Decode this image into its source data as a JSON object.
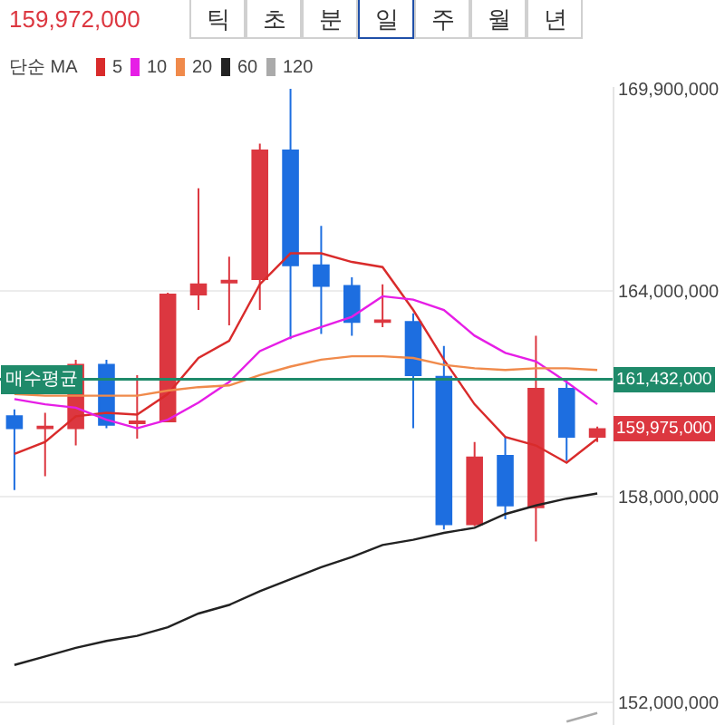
{
  "chart_data": {
    "type": "candlestick",
    "legend_title": "단순 MA",
    "legend": "top left",
    "grid": "y",
    "tick_labels": "y",
    "marker": "none",
    "line_style": "solid",
    "categories": [
      null,
      null,
      null,
      null,
      null,
      null,
      null,
      null,
      null,
      null,
      null,
      null,
      null,
      null,
      null,
      null,
      null,
      null,
      null,
      null
    ],
    "ohlc": [
      [
        160350000,
        160550000,
        158200000,
        160000000
      ],
      [
        160000000,
        160450000,
        158600000,
        160050000
      ],
      [
        160000000,
        162000000,
        159500000,
        161850000
      ],
      [
        161850000,
        162000000,
        160000000,
        160100000
      ],
      [
        160150000,
        161550000,
        159700000,
        160200000
      ],
      [
        160200000,
        163950000,
        160200000,
        163900000
      ],
      [
        163900000,
        167000000,
        163450000,
        164200000
      ],
      [
        164250000,
        165000000,
        163000000,
        164300000
      ],
      [
        164350000,
        168300000,
        163450000,
        168100000
      ],
      [
        168100000,
        169900000,
        162600000,
        164750000
      ],
      [
        164750000,
        165900000,
        162750000,
        164150000
      ],
      [
        164150000,
        164400000,
        162700000,
        163100000
      ],
      [
        163100000,
        164200000,
        162950000,
        163150000
      ],
      [
        163100000,
        163350000,
        160000000,
        161550000
      ],
      [
        161500000,
        162400000,
        157050000,
        157200000
      ],
      [
        157200000,
        159600000,
        157150000,
        159150000
      ],
      [
        159200000,
        159750000,
        157350000,
        157750000
      ],
      [
        157700000,
        162700000,
        156700000,
        161150000
      ],
      [
        161150000,
        161450000,
        159050000,
        159750000
      ],
      [
        159750000,
        160050000,
        159600000,
        159975000
      ]
    ],
    "colors": [
      "#1d6ee0",
      "#dc3740",
      "#dc3740",
      "#1d6ee0",
      "#dc3740",
      "#dc3740",
      "#dc3740",
      "#dc3740",
      "#dc3740",
      "#1d6ee0",
      "#1d6ee0",
      "#1d6ee0",
      "#dc3740",
      "#1d6ee0",
      "#1d6ee0",
      "#dc3740",
      "#1d6ee0",
      "#dc3740",
      "#1d6ee0",
      "#dc3740"
    ],
    "series": [
      {
        "name": "5",
        "type": "line",
        "color": "#d92b2b",
        "values": [
          159250000,
          159600000,
          160350000,
          160450000,
          160400000,
          161000000,
          162050000,
          162550000,
          164200000,
          165100000,
          165100000,
          164850000,
          164700000,
          163450000,
          162000000,
          160700000,
          159750000,
          159500000,
          159000000,
          159700000
        ]
      },
      {
        "name": "10",
        "type": "line",
        "color": "#e61ee6",
        "values": [
          160850000,
          160700000,
          160600000,
          160250000,
          160000000,
          160250000,
          160750000,
          161350000,
          162250000,
          162650000,
          162950000,
          163250000,
          163850000,
          163750000,
          163450000,
          162700000,
          162200000,
          161950000,
          161350000,
          160700000
        ]
      },
      {
        "name": "20",
        "type": "line",
        "color": "#f08a4b",
        "values": [
          161000000,
          160950000,
          160950000,
          160950000,
          160950000,
          161100000,
          161200000,
          161250000,
          161550000,
          161800000,
          162000000,
          162100000,
          162100000,
          162050000,
          161850000,
          161750000,
          161700000,
          161750000,
          161750000,
          161700000
        ]
      },
      {
        "name": "60",
        "type": "line",
        "color": "#222222",
        "values": [
          153100000,
          153350000,
          153600000,
          153800000,
          153950000,
          154200000,
          154600000,
          154850000,
          155250000,
          155600000,
          155950000,
          156250000,
          156600000,
          156750000,
          156950000,
          157100000,
          157500000,
          157750000,
          157950000,
          158100000
        ]
      },
      {
        "name": "120",
        "type": "line",
        "color": "#aaaaaa",
        "values": [
          null,
          null,
          null,
          null,
          null,
          null,
          null,
          null,
          null,
          null,
          null,
          null,
          null,
          null,
          null,
          null,
          null,
          null,
          151450000,
          151700000
        ]
      }
    ],
    "ylim": [
      151350000,
      169950000
    ],
    "yticks": [
      {
        "value": 169900000,
        "label": "169,900,000"
      },
      {
        "value": 164000000,
        "label": "164,000,000"
      },
      {
        "value": 158000000,
        "label": "158,000,000"
      },
      {
        "value": 152000000,
        "label": "152,000,000"
      }
    ],
    "ref_lines": [
      {
        "axis": "y",
        "value": 161432000,
        "label": "매수평균",
        "color": "#1f8a6a"
      }
    ],
    "annotations": [
      "159,972,000",
      "틱",
      "초",
      "분",
      "일",
      "주",
      "월",
      "년",
      "161,432,000",
      "159,975,000"
    ]
  }
}
